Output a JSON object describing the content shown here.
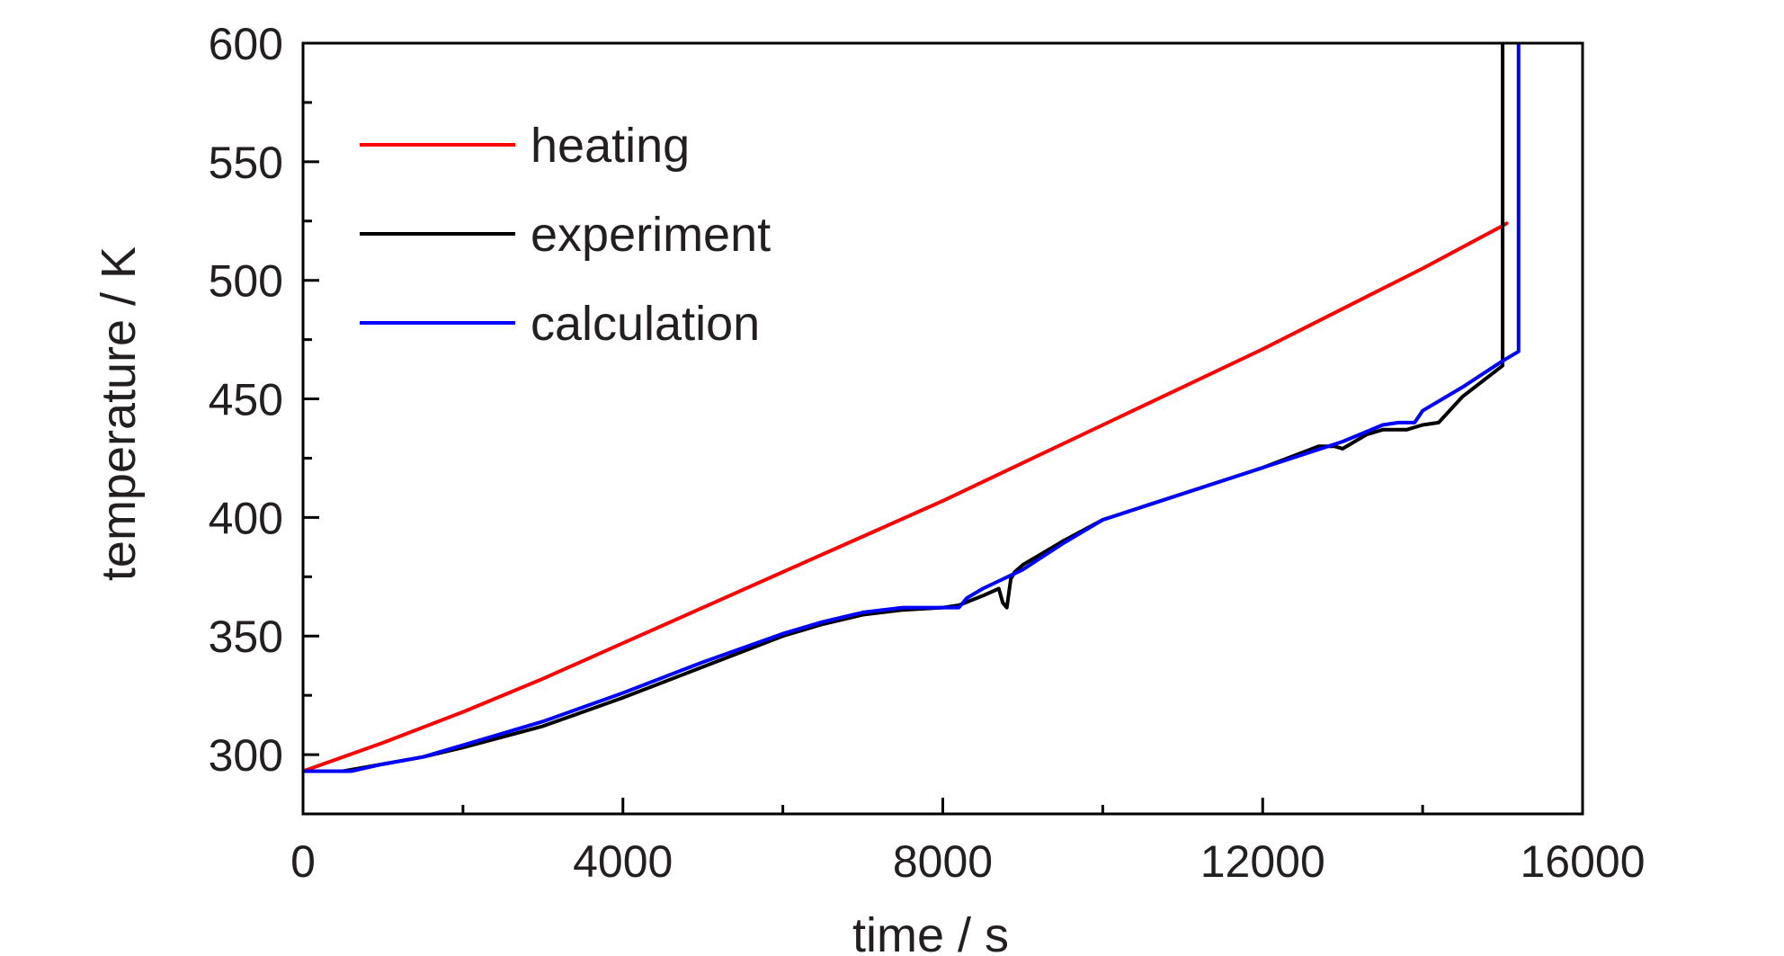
{
  "chart_data": {
    "type": "line",
    "xlabel": "time / s",
    "ylabel": "temperature / K",
    "xlim": [
      0,
      16000
    ],
    "ylim": [
      275,
      600
    ],
    "x_ticks": [
      0,
      4000,
      8000,
      12000,
      16000
    ],
    "y_ticks": [
      300,
      350,
      400,
      450,
      500,
      550,
      600
    ],
    "grid": false,
    "legend_position": "top-left",
    "series": [
      {
        "name": "heating",
        "color": "#ff0000",
        "x": [
          0,
          1000,
          2000,
          3000,
          4000,
          5000,
          6000,
          7000,
          8000,
          9000,
          10000,
          11000,
          12000,
          13000,
          14000,
          15000,
          15050
        ],
        "y": [
          293,
          305,
          318,
          332,
          347,
          362,
          377,
          392,
          407,
          423,
          439,
          455,
          471,
          488,
          505,
          523,
          524
        ]
      },
      {
        "name": "experiment",
        "color": "#000000",
        "x": [
          0,
          500,
          1000,
          1500,
          2000,
          3000,
          4000,
          5000,
          6000,
          6500,
          7000,
          7500,
          8000,
          8200,
          8500,
          8700,
          8750,
          8800,
          8850,
          8900,
          9000,
          9500,
          10000,
          11000,
          12000,
          12700,
          12900,
          13000,
          13100,
          13300,
          13500,
          13800,
          14000,
          14200,
          14500,
          15000,
          15000,
          15000
        ],
        "y": [
          293,
          293,
          296,
          299,
          303,
          312,
          324,
          337,
          350,
          355,
          359,
          361,
          362,
          363,
          367,
          370,
          364,
          362,
          374,
          377,
          380,
          390,
          399,
          410,
          421,
          430,
          430,
          429,
          431,
          435,
          437,
          437,
          439,
          440,
          451,
          464,
          500,
          600
        ]
      },
      {
        "name": "calculation",
        "color": "#0000ff",
        "x": [
          0,
          300,
          600,
          1000,
          1500,
          2000,
          3000,
          4000,
          5000,
          6000,
          6500,
          7000,
          7500,
          8000,
          8200,
          8300,
          8500,
          9000,
          9500,
          10000,
          11000,
          12000,
          13000,
          13500,
          13700,
          13900,
          14000,
          14500,
          15000,
          15200,
          15200
        ],
        "y": [
          293,
          293,
          293,
          296,
          299,
          304,
          314,
          326,
          339,
          351,
          356,
          360,
          362,
          362,
          362,
          366,
          370,
          378,
          389,
          399,
          410,
          421,
          432,
          439,
          440,
          440,
          445,
          455,
          466,
          470,
          600
        ]
      }
    ]
  }
}
